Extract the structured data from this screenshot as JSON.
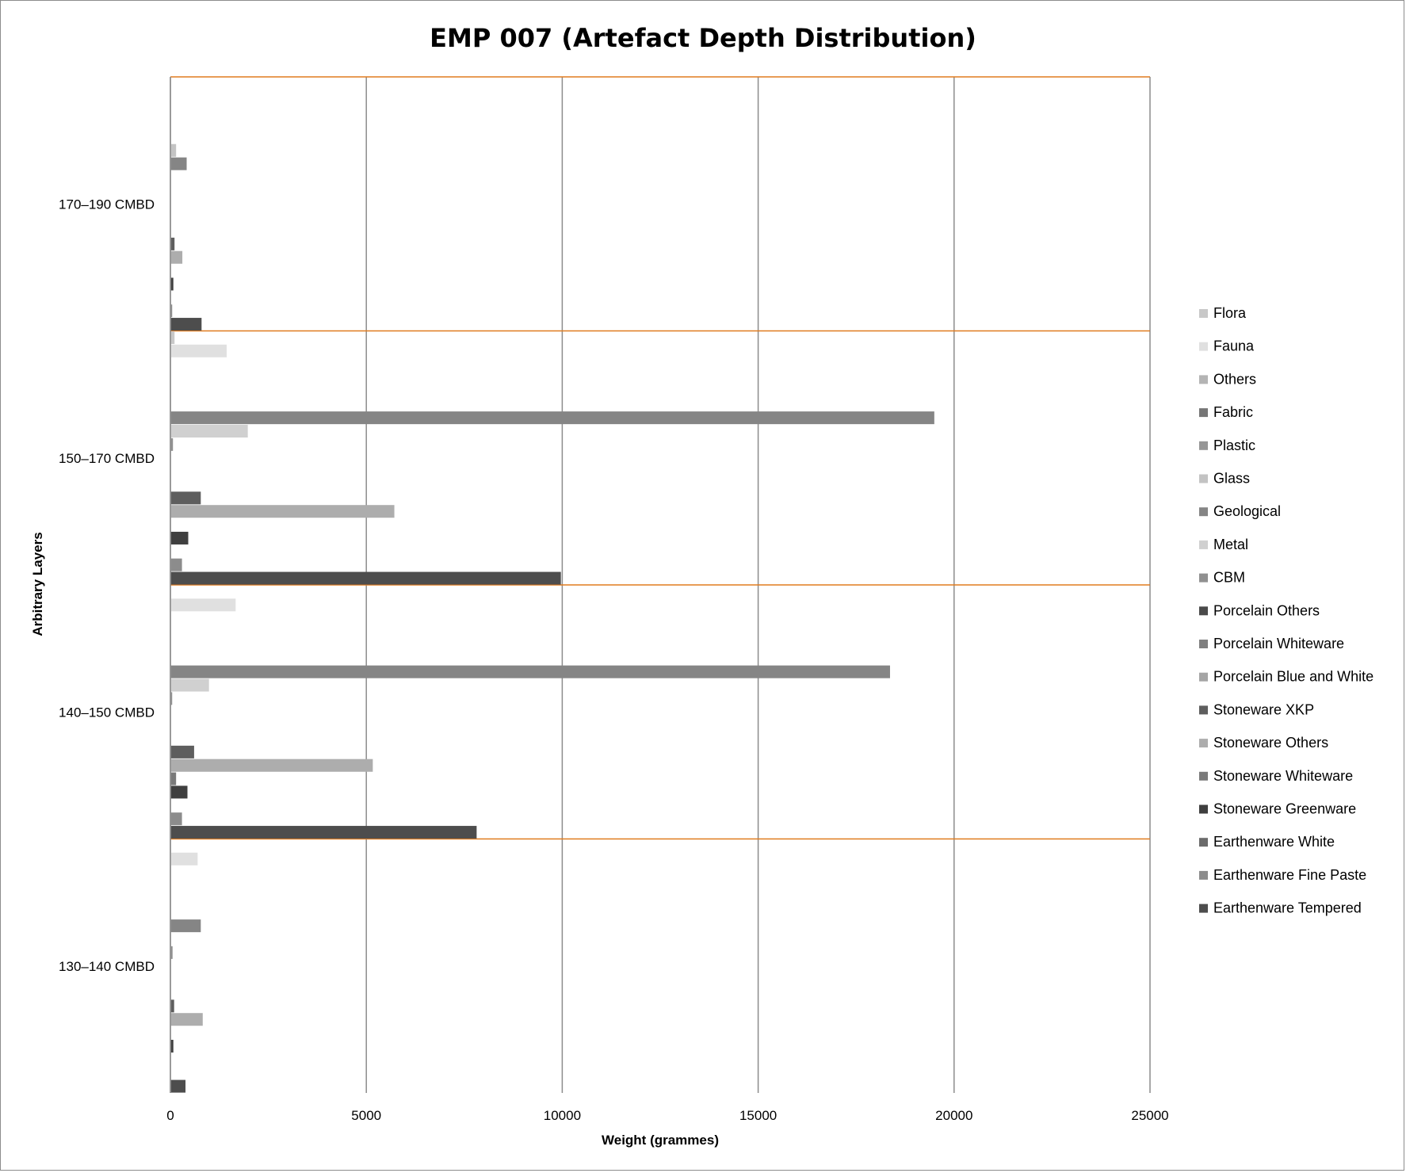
{
  "chart_data": {
    "type": "bar",
    "orientation": "horizontal",
    "title": "EMP 007 (Artefact Depth Distribution)",
    "xlabel": "Weight (grammes)",
    "ylabel": "Arbitrary Layers",
    "xlim": [
      0,
      25000
    ],
    "xticks": [
      "0",
      "5000",
      "10000",
      "15000",
      "20000",
      "25000"
    ],
    "grid": "vertical major gridlines",
    "legend_position": "right",
    "categories": [
      "130–140 CMBD",
      "140–150 CMBD",
      "150–170 CMBD",
      "170–190 CMBD"
    ],
    "series": [
      {
        "name": "Earthenware Tempered",
        "color": "#4d4d4d",
        "values": [
          370,
          7800,
          9950,
          780
        ]
      },
      {
        "name": "Earthenware Fine Paste",
        "color": "#8c8c8c",
        "values": [
          0,
          280,
          280,
          30
        ]
      },
      {
        "name": "Earthenware White",
        "color": "#6b6b6b",
        "values": [
          0,
          0,
          0,
          0
        ]
      },
      {
        "name": "Stoneware Greenware",
        "color": "#3f3f3f",
        "values": [
          60,
          420,
          440,
          60
        ]
      },
      {
        "name": "Stoneware Whiteware",
        "color": "#7a7a7a",
        "values": [
          0,
          130,
          0,
          0
        ]
      },
      {
        "name": "Stoneware Others",
        "color": "#adadad",
        "values": [
          810,
          5150,
          5700,
          290
        ]
      },
      {
        "name": "Stoneware XKP",
        "color": "#5e5e5e",
        "values": [
          80,
          590,
          760,
          90
        ]
      },
      {
        "name": "Porcelain Blue and White",
        "color": "#a5a5a5",
        "values": [
          0,
          0,
          0,
          0
        ]
      },
      {
        "name": "Porcelain Whiteware",
        "color": "#7f7f7f",
        "values": [
          0,
          0,
          0,
          0
        ]
      },
      {
        "name": "Porcelain Others",
        "color": "#4a4a4a",
        "values": [
          0,
          0,
          0,
          0
        ]
      },
      {
        "name": "CBM",
        "color": "#909090",
        "values": [
          40,
          20,
          50,
          0
        ]
      },
      {
        "name": "Metal",
        "color": "#d0d0d0",
        "values": [
          0,
          970,
          1960,
          0
        ]
      },
      {
        "name": "Geological",
        "color": "#858585",
        "values": [
          760,
          18350,
          19480,
          400
        ]
      },
      {
        "name": "Glass",
        "color": "#c3c3c3",
        "values": [
          0,
          0,
          0,
          130
        ]
      },
      {
        "name": "Plastic",
        "color": "#969696",
        "values": [
          0,
          0,
          0,
          0
        ]
      },
      {
        "name": "Fabric",
        "color": "#767676",
        "values": [
          0,
          0,
          0,
          0
        ]
      },
      {
        "name": "Others",
        "color": "#b4b4b4",
        "values": [
          0,
          0,
          0,
          0
        ]
      },
      {
        "name": "Fauna",
        "color": "#e0e0e0",
        "values": [
          680,
          1650,
          1420,
          0
        ]
      },
      {
        "name": "Flora",
        "color": "#c8c8c8",
        "values": [
          0,
          0,
          90,
          0
        ]
      }
    ]
  }
}
